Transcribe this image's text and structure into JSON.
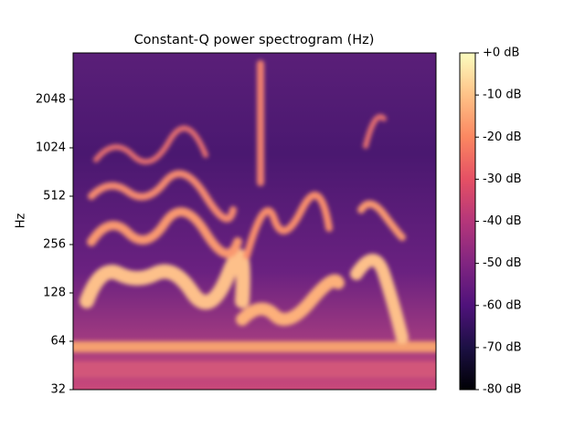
{
  "chart_data": {
    "type": "spectrogram",
    "title": "Constant-Q power spectrogram (Hz)",
    "y_label": "Hz",
    "y_scale": "log2",
    "ylim": [
      32,
      3990
    ],
    "yticks": [
      32,
      64,
      128,
      256,
      512,
      1024,
      2048
    ],
    "colorbar": {
      "colormap": "magma",
      "clim": [
        -80,
        0
      ],
      "ticks": [
        {
          "value": 0,
          "label": "+0 dB"
        },
        {
          "value": -10,
          "label": "-10 dB"
        },
        {
          "value": -20,
          "label": "-20 dB"
        },
        {
          "value": -30,
          "label": "-30 dB"
        },
        {
          "value": -40,
          "label": "-40 dB"
        },
        {
          "value": -50,
          "label": "-50 dB"
        },
        {
          "value": -60,
          "label": "-60 dB"
        },
        {
          "value": -70,
          "label": "-70 dB"
        },
        {
          "value": -80,
          "label": "-80 dB"
        }
      ]
    }
  }
}
